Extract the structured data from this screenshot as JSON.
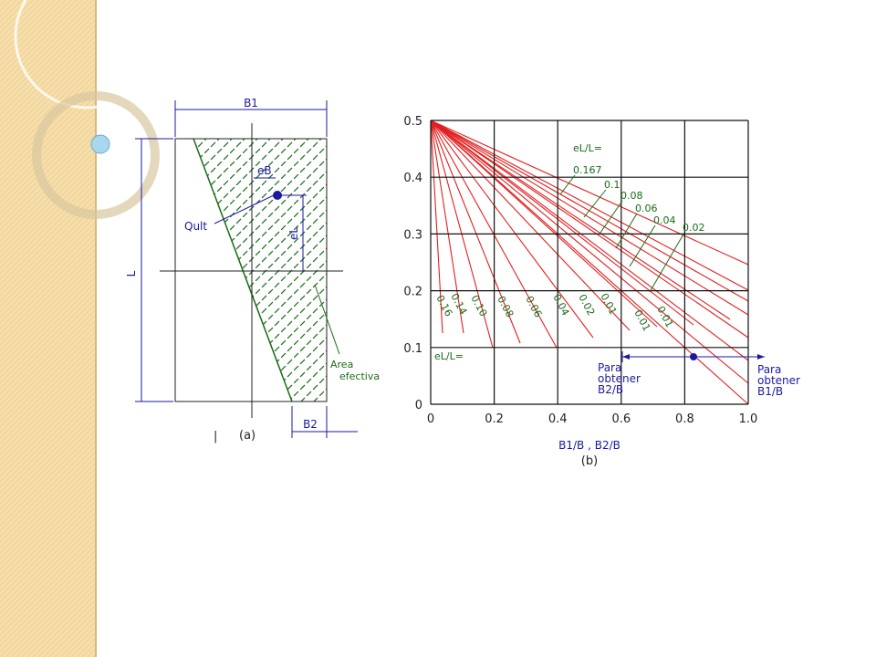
{
  "figure_a": {
    "width_label": "B1",
    "height_label": "L",
    "eb_label": "eB",
    "load_label": "Qult",
    "el_label": "eL",
    "area_label": [
      "Area",
      "efectiva"
    ],
    "caption": "(a)",
    "b2_label": "B2",
    "cursor": "|"
  },
  "figure_b": {
    "y_tick_labels": [
      "0",
      "0.1",
      "0.2",
      "0.3",
      "0.4",
      "0.5"
    ],
    "x_tick_labels": [
      "0",
      "0.2",
      "0.4",
      "0.6",
      "0.8",
      "1.0"
    ],
    "top_header": "eL/L=",
    "top_labels": [
      "0.167",
      "0.1",
      "0.08",
      "0.06",
      "0.04",
      "0.02"
    ],
    "bottom_header": "eL/L=",
    "bottom_labels": [
      "0.16",
      "0.14",
      "0.10",
      "0.08",
      "0.06",
      "0.04",
      "0.02",
      "0.01",
      "0.01",
      "0.01"
    ],
    "left_note": [
      "Para",
      "obtener",
      "B2/B"
    ],
    "right_note": [
      "Para",
      "obtener",
      "B1/B"
    ],
    "x_axis_label": "B1/B , B2/B",
    "caption": "(b)"
  }
}
